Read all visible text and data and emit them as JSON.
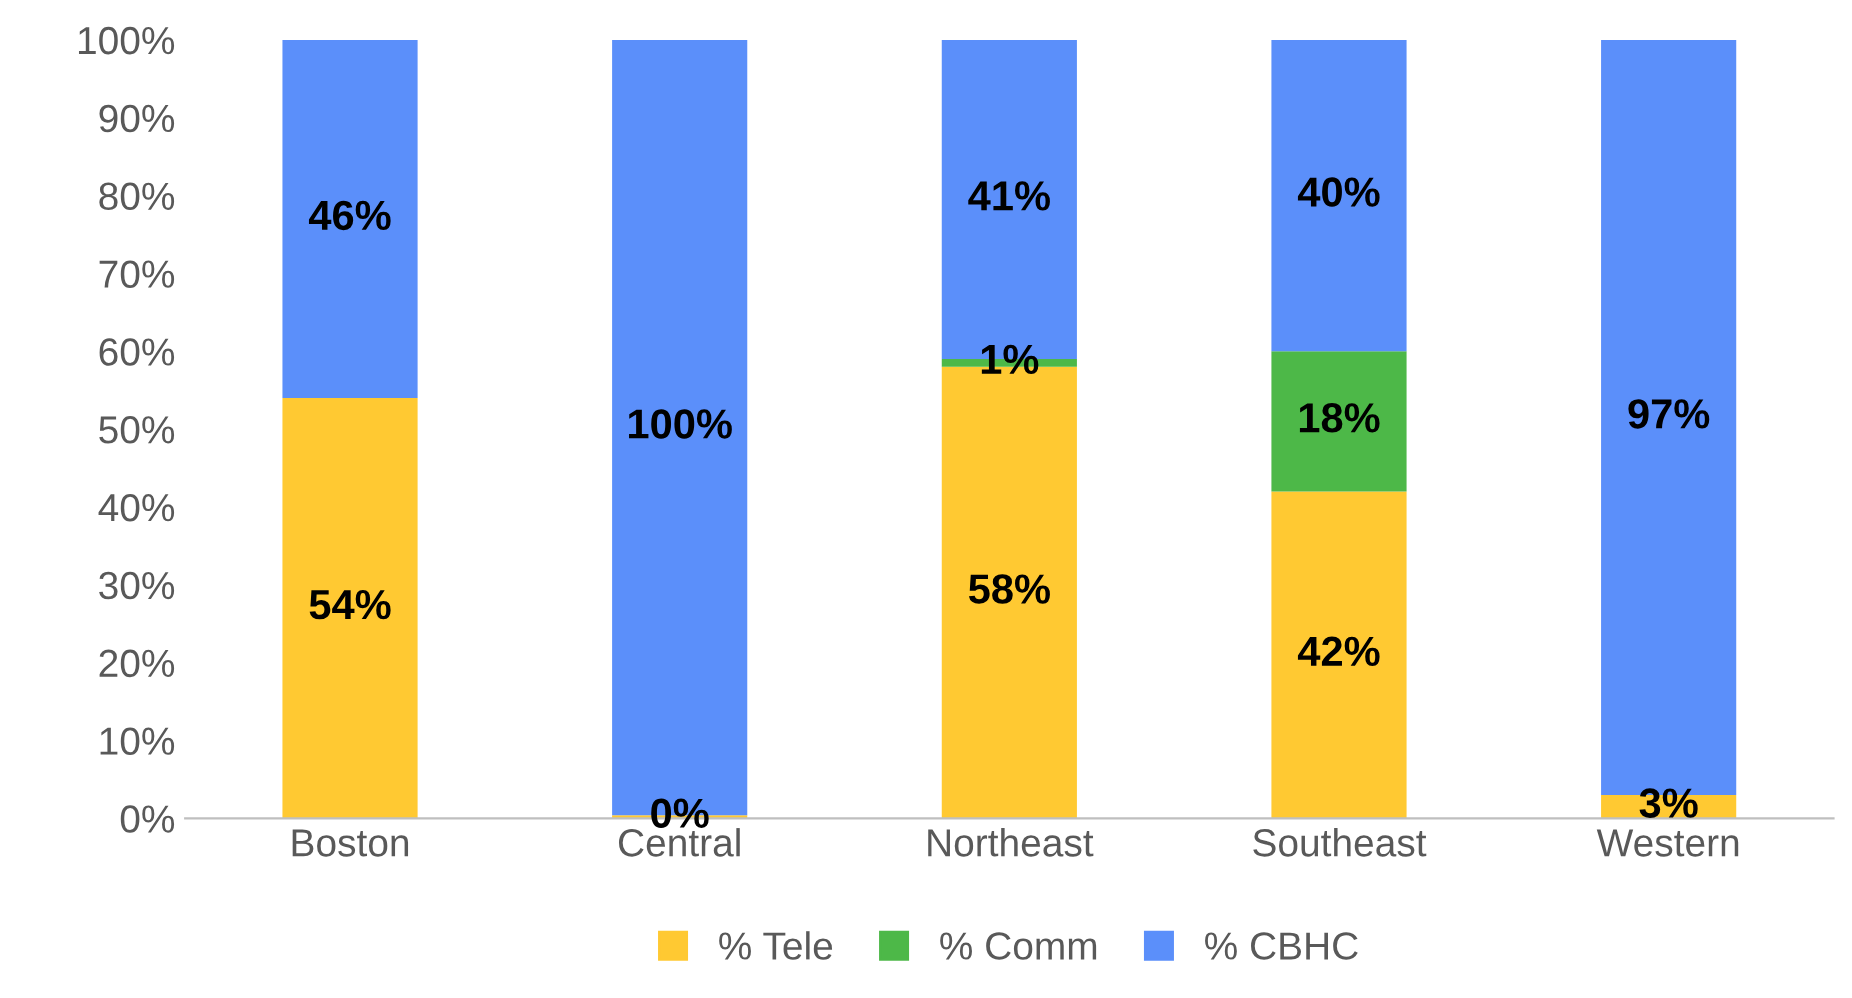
{
  "chart_data": {
    "type": "bar",
    "stacked": true,
    "categories": [
      "Boston",
      "Central",
      "Northeast",
      "Southeast",
      "Western"
    ],
    "series": [
      {
        "name": "% Tele",
        "color": "#ffc932",
        "values": [
          54,
          0.4,
          58,
          42,
          3
        ],
        "value_labels": [
          "54%",
          "0%",
          "58%",
          "42%",
          "3%"
        ]
      },
      {
        "name": "% Comm",
        "color": "#4db848",
        "values": [
          0,
          0,
          1,
          18,
          0
        ],
        "value_labels": [
          null,
          null,
          "1%",
          "18%",
          null
        ]
      },
      {
        "name": "% CBHC",
        "color": "#5b8ffa",
        "values": [
          46,
          99.6,
          41,
          40,
          97
        ],
        "value_labels": [
          "46%",
          "100%",
          "41%",
          "40%",
          "97%"
        ]
      }
    ],
    "ylim": [
      0,
      100
    ],
    "yticks": [
      {
        "value": 0,
        "label": "0%"
      },
      {
        "value": 10,
        "label": "10%"
      },
      {
        "value": 20,
        "label": "20%"
      },
      {
        "value": 30,
        "label": "30%"
      },
      {
        "value": 40,
        "label": "40%"
      },
      {
        "value": 50,
        "label": "50%"
      },
      {
        "value": 60,
        "label": "60%"
      },
      {
        "value": 70,
        "label": "70%"
      },
      {
        "value": 80,
        "label": "80%"
      },
      {
        "value": 90,
        "label": "90%"
      },
      {
        "value": 100,
        "label": "100%"
      }
    ],
    "grid": false,
    "legend": "bottom"
  }
}
